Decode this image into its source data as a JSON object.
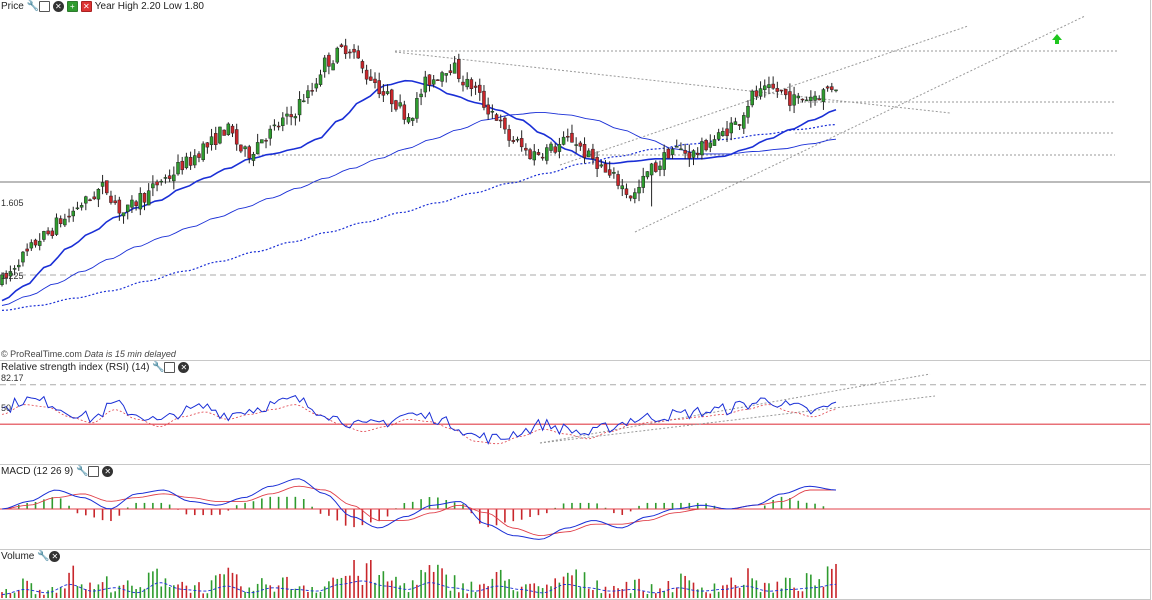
{
  "price_panel": {
    "label": "Price",
    "year_info": "Year High 2.20 Low 1.80",
    "level_upper": "1.605",
    "level_lower": "1.225",
    "footer_source": "© ProRealTime.com",
    "footer_delay": "Data is 15 min delayed"
  },
  "rsi_panel": {
    "label": "Relative strength index (RSI) (14)",
    "level_top": "82.17",
    "level_mid": "50"
  },
  "macd_panel": {
    "label": "MACD (12 26 9)"
  },
  "volume_panel": {
    "label": "Volume"
  },
  "colors": {
    "up": "#2e9b2e",
    "down": "#c8262b",
    "ma": "#1a2fd6",
    "signal": "#e0404a"
  },
  "chart_data": [
    {
      "type": "candlestick",
      "title": "Price",
      "annotations": [
        "Year High 2.20 Low 1.80"
      ],
      "labeled_levels": [
        1.605,
        1.225
      ],
      "series": [
        {
          "name": "close (approx)",
          "values": [
            1.2,
            1.3,
            1.38,
            1.45,
            1.52,
            1.58,
            1.48,
            1.55,
            1.62,
            1.68,
            1.75,
            1.82,
            1.72,
            1.8,
            1.86,
            1.96,
            2.1,
            2.16,
            2.04,
            1.95,
            1.88,
            2.02,
            2.08,
            2.0,
            1.9,
            1.78,
            1.72,
            1.74,
            1.78,
            1.7,
            1.62,
            1.55,
            1.66,
            1.74,
            1.72,
            1.78,
            1.84,
            1.96,
            1.98,
            1.94,
            1.96,
            2.0
          ]
        },
        {
          "name": "moving average (solid)",
          "values": [
            1.12,
            1.18,
            1.26,
            1.34,
            1.4,
            1.46,
            1.5,
            1.53,
            1.58,
            1.62,
            1.66,
            1.7,
            1.72,
            1.74,
            1.78,
            1.86,
            1.94,
            2.0,
            2.02,
            2.0,
            1.96,
            1.93,
            1.9,
            1.86,
            1.8,
            1.74,
            1.7,
            1.68,
            1.69,
            1.7,
            1.7,
            1.7,
            1.71,
            1.74,
            1.78,
            1.82,
            1.86,
            1.9
          ]
        },
        {
          "name": "moving average (thin)",
          "values": [
            1.1,
            1.14,
            1.19,
            1.24,
            1.29,
            1.34,
            1.38,
            1.42,
            1.46,
            1.5,
            1.54,
            1.58,
            1.62,
            1.66,
            1.7,
            1.74,
            1.78,
            1.82,
            1.86,
            1.88,
            1.89,
            1.88,
            1.86,
            1.82,
            1.78,
            1.74,
            1.72,
            1.72,
            1.73,
            1.74,
            1.76,
            1.78
          ]
        },
        {
          "name": "moving average (dotted)",
          "values": [
            1.08,
            1.1,
            1.13,
            1.16,
            1.2,
            1.24,
            1.28,
            1.32,
            1.36,
            1.4,
            1.44,
            1.48,
            1.52,
            1.56,
            1.6,
            1.64,
            1.68,
            1.71,
            1.74,
            1.76,
            1.78,
            1.8,
            1.82,
            1.84
          ]
        }
      ]
    },
    {
      "type": "line",
      "title": "Relative strength index (RSI) (14)",
      "labeled_levels": [
        82.17,
        50
      ],
      "series": [
        {
          "name": "RSI (approx)",
          "values": [
            62,
            70,
            68,
            60,
            55,
            66,
            58,
            52,
            60,
            64,
            58,
            62,
            66,
            70,
            62,
            54,
            48,
            52,
            58,
            56,
            50,
            40,
            38,
            44,
            50,
            46,
            42,
            48,
            54,
            56,
            58,
            60,
            62,
            66,
            70,
            64,
            60,
            66
          ]
        }
      ]
    },
    {
      "type": "line",
      "title": "MACD (12 26 9)",
      "series": [
        {
          "name": "MACD (approx)",
          "values": [
            0.0,
            0.02,
            0.05,
            0.03,
            0.0,
            0.04,
            0.05,
            0.02,
            0.01,
            0.03,
            0.06,
            0.08,
            0.04,
            -0.02,
            -0.05,
            -0.02,
            0.01,
            0.02,
            -0.04,
            -0.07,
            -0.08,
            -0.05,
            -0.03,
            -0.05,
            -0.02,
            0.0,
            0.01,
            0.0,
            0.01,
            0.04,
            0.06,
            0.05
          ]
        },
        {
          "name": "signal (approx)",
          "values": [
            0.0,
            0.01,
            0.03,
            0.04,
            0.02,
            0.03,
            0.04,
            0.03,
            0.02,
            0.02,
            0.04,
            0.06,
            0.05,
            0.01,
            -0.03,
            -0.03,
            -0.01,
            0.01,
            -0.01,
            -0.05,
            -0.07,
            -0.06,
            -0.04,
            -0.04,
            -0.03,
            -0.01,
            0.0,
            0.0,
            0.01,
            0.02,
            0.05,
            0.05
          ]
        }
      ]
    },
    {
      "type": "bar",
      "title": "Volume",
      "series": [
        {
          "name": "volume (relative, approx)",
          "values": [
            0.2,
            0.5,
            0.3,
            0.8,
            0.4,
            0.6,
            0.3,
            0.9,
            0.5,
            0.4,
            0.7,
            0.3,
            0.6,
            0.5,
            0.4,
            0.8,
            1.0,
            0.7,
            0.5,
            0.9,
            0.6,
            0.4,
            0.7,
            0.5,
            0.3,
            0.8,
            0.6,
            0.4,
            0.5,
            0.3,
            0.6,
            0.4,
            0.5,
            0.7,
            0.4,
            0.5,
            0.6,
            0.8
          ]
        }
      ]
    }
  ]
}
